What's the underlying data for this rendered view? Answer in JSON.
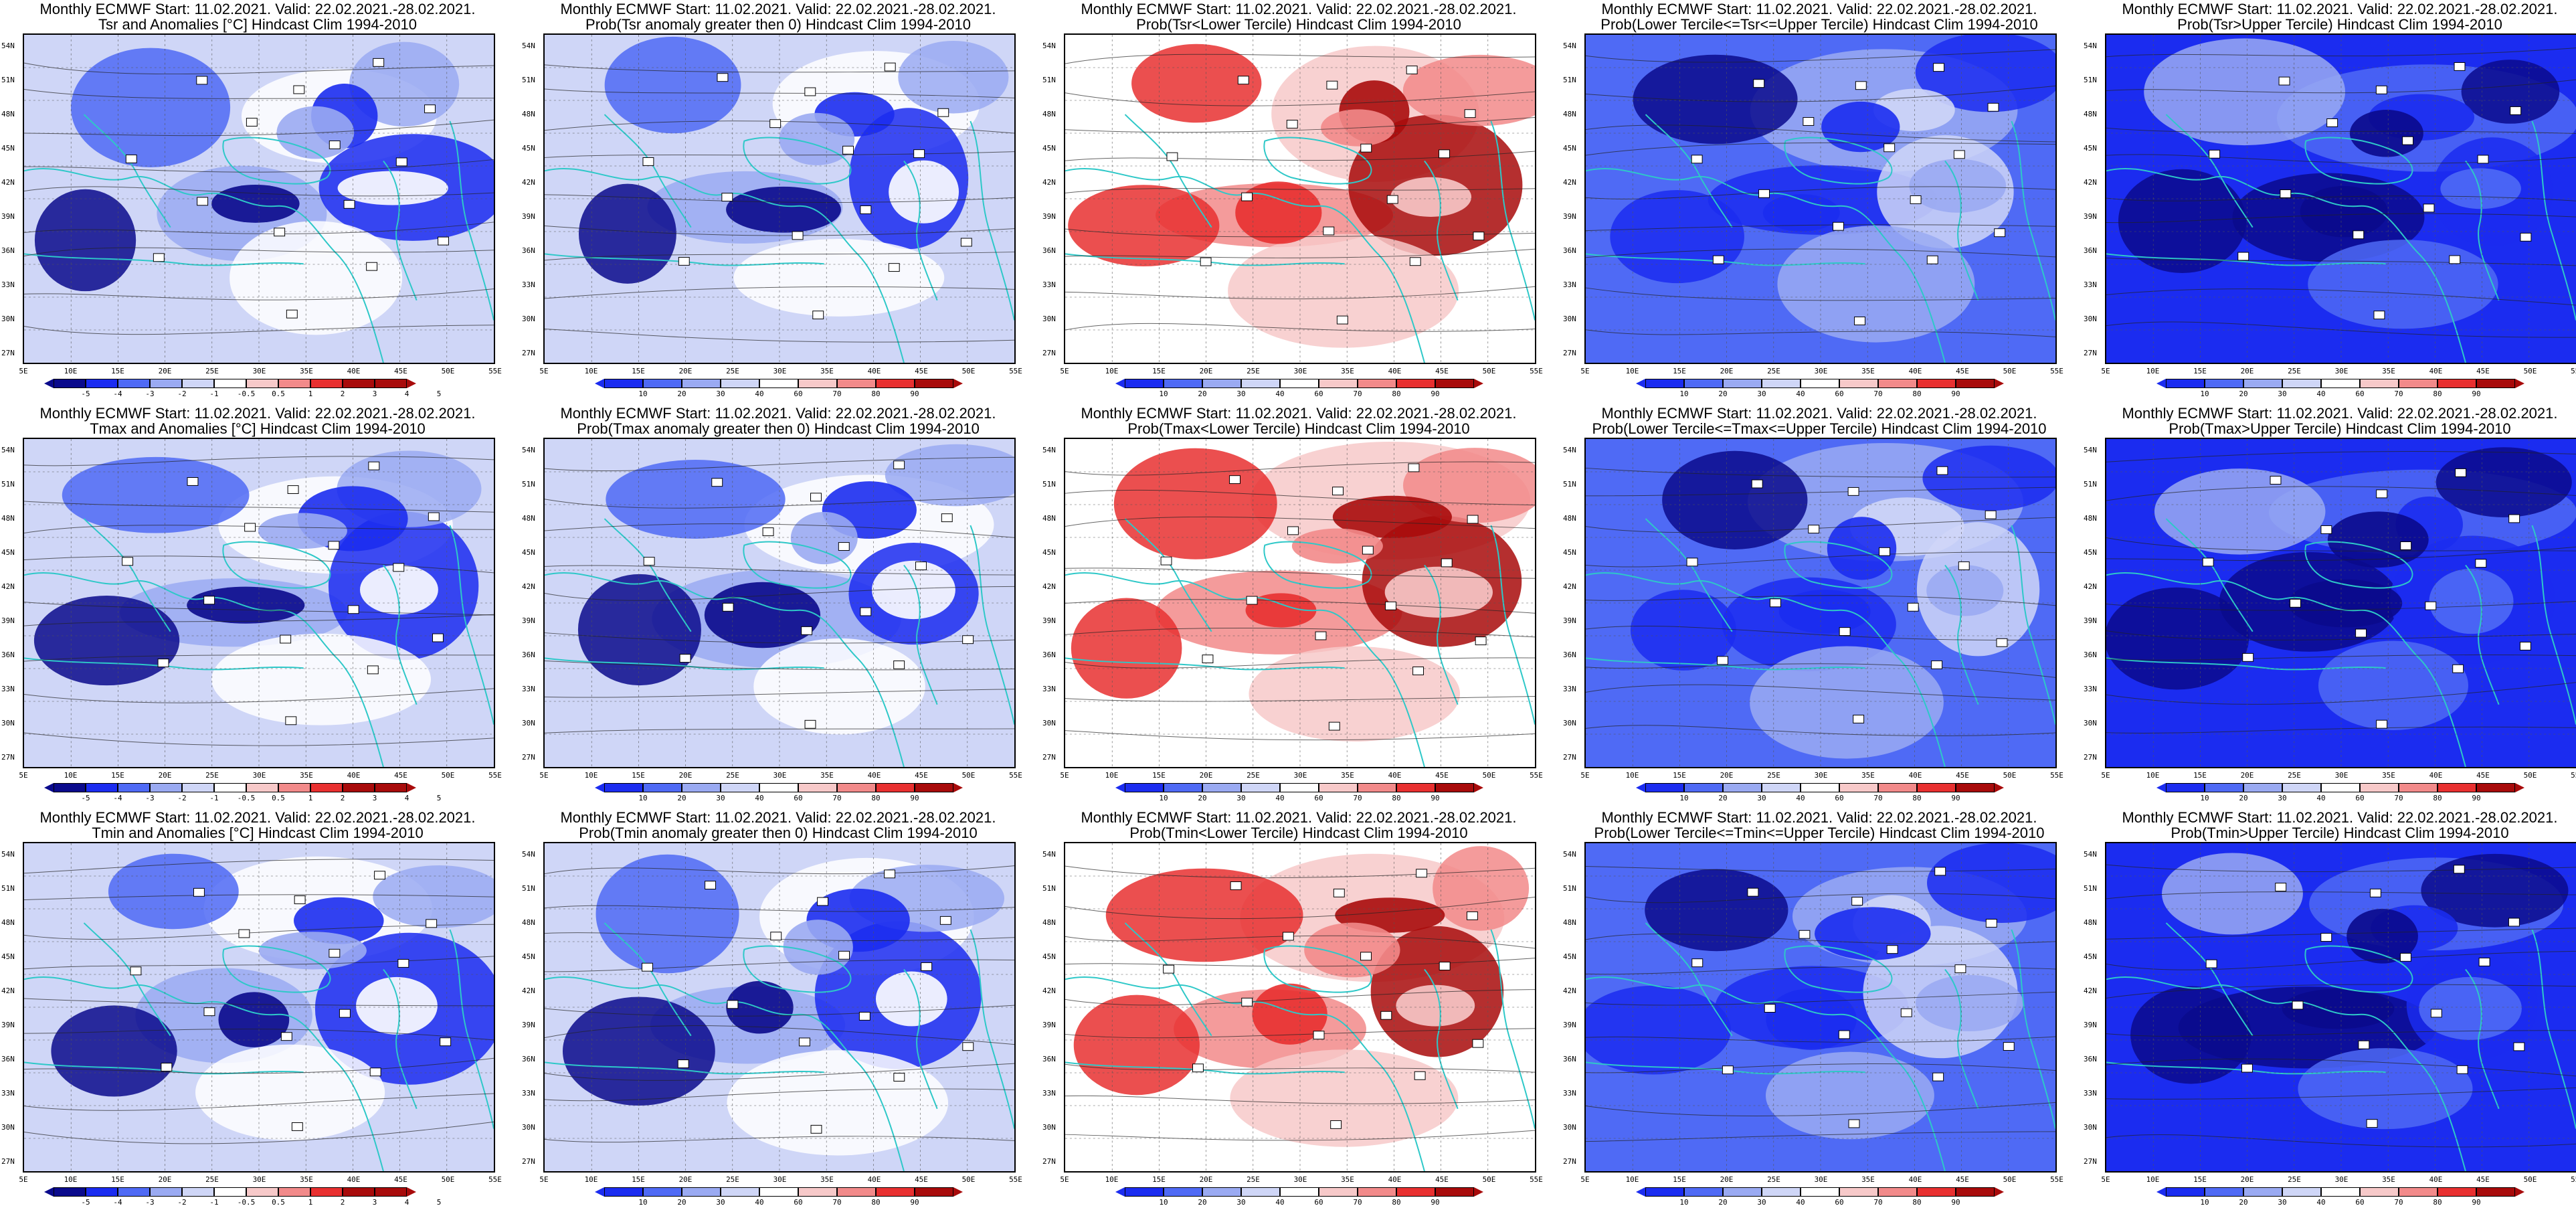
{
  "figure": {
    "lat_labels": [
      "54N",
      "51N",
      "48N",
      "45N",
      "42N",
      "39N",
      "36N",
      "33N",
      "30N",
      "27N"
    ],
    "lon_labels": [
      "5E",
      "10E",
      "15E",
      "20E",
      "25E",
      "30E",
      "35E",
      "40E",
      "45E",
      "50E",
      "55E"
    ],
    "anomaly_ticks": [
      "-5",
      "-4",
      "-3",
      "-2",
      "-1",
      "-0.5",
      "0.5",
      "1",
      "2",
      "3",
      "4",
      "5"
    ],
    "probability_ticks": [
      "10",
      "20",
      "30",
      "40",
      "60",
      "70",
      "80",
      "90"
    ],
    "colors": {
      "dark_blue": "#0a0a8c",
      "blue": "#1b2cf0",
      "mid_blue": "#4f6af5",
      "light_blue": "#9aaaf2",
      "pale_blue": "#cfd6f7",
      "white": "#ffffff",
      "pale_red": "#f7c9c9",
      "light_red": "#f28a8a",
      "red": "#e83030",
      "dark_red": "#a80b0b",
      "coast": "#2ec8c8",
      "contour": "#222222"
    }
  },
  "panels": [
    {
      "line1": "Monthly ECMWF Start: 11.02.2021. Valid: 22.02.2021.-28.02.2021.",
      "line2": "Tsr and Anomalies [°C] Hindcast Clim 1994-2010",
      "scale": "anomaly",
      "palette": "cold_anom"
    },
    {
      "line1": "Monthly ECMWF Start: 11.02.2021. Valid: 22.02.2021.-28.02.2021.",
      "line2": "Prob(Tsr anomaly greater then 0) Hindcast Clim 1994-2010",
      "scale": "probability",
      "palette": "cold"
    },
    {
      "line1": "Monthly ECMWF Start: 11.02.2021. Valid: 22.02.2021.-28.02.2021.",
      "line2": "Prob(Tsr<Lower Tercile) Hindcast Clim 1994-2010",
      "scale": "probability",
      "palette": "warm"
    },
    {
      "line1": "Monthly ECMWF Start: 11.02.2021. Valid: 22.02.2021.-28.02.2021.",
      "line2": "Prob(Lower Tercile<=Tsr<=Upper Tercile) Hindcast Clim 1994-2010",
      "scale": "probability",
      "palette": "mid"
    },
    {
      "line1": "Monthly ECMWF Start: 11.02.2021. Valid: 22.02.2021.-28.02.2021.",
      "line2": "Prob(Tsr>Upper Tercile) Hindcast Clim 1994-2010",
      "scale": "probability",
      "palette": "deep"
    },
    {
      "line1": "Monthly ECMWF Start: 11.02.2021. Valid: 22.02.2021.-28.02.2021.",
      "line2": "Tmax and Anomalies [°C] Hindcast Clim 1994-2010",
      "scale": "anomaly",
      "palette": "cold_anom"
    },
    {
      "line1": "Monthly ECMWF Start: 11.02.2021. Valid: 22.02.2021.-28.02.2021.",
      "line2": "Prob(Tmax anomaly greater then 0) Hindcast Clim 1994-2010",
      "scale": "probability",
      "palette": "cold"
    },
    {
      "line1": "Monthly ECMWF Start: 11.02.2021. Valid: 22.02.2021.-28.02.2021.",
      "line2": "Prob(Tmax<Lower Tercile) Hindcast Clim 1994-2010",
      "scale": "probability",
      "palette": "warm"
    },
    {
      "line1": "Monthly ECMWF Start: 11.02.2021. Valid: 22.02.2021.-28.02.2021.",
      "line2": "Prob(Lower Tercile<=Tmax<=Upper Tercile) Hindcast Clim 1994-2010",
      "scale": "probability",
      "palette": "mid"
    },
    {
      "line1": "Monthly ECMWF Start: 11.02.2021. Valid: 22.02.2021.-28.02.2021.",
      "line2": "Prob(Tmax>Upper Tercile) Hindcast Clim 1994-2010",
      "scale": "probability",
      "palette": "deep"
    },
    {
      "line1": "Monthly ECMWF Start: 11.02.2021. Valid: 22.02.2021.-28.02.2021.",
      "line2": "Tmin and Anomalies [°C] Hindcast Clim 1994-2010",
      "scale": "anomaly",
      "palette": "cold_anom"
    },
    {
      "line1": "Monthly ECMWF Start: 11.02.2021. Valid: 22.02.2021.-28.02.2021.",
      "line2": "Prob(Tmin anomaly greater then 0) Hindcast Clim 1994-2010",
      "scale": "probability",
      "palette": "cold"
    },
    {
      "line1": "Monthly ECMWF Start: 11.02.2021. Valid: 22.02.2021.-28.02.2021.",
      "line2": "Prob(Tmin<Lower Tercile) Hindcast Clim 1994-2010",
      "scale": "probability",
      "palette": "warm"
    },
    {
      "line1": "Monthly ECMWF Start: 11.02.2021. Valid: 22.02.2021.-28.02.2021.",
      "line2": "Prob(Lower Tercile<=Tmin<=Upper Tercile) Hindcast Clim 1994-2010",
      "scale": "probability",
      "palette": "mid"
    },
    {
      "line1": "Monthly ECMWF Start: 11.02.2021. Valid: 22.02.2021.-28.02.2021.",
      "line2": "Prob(Tmin>Upper Tercile) Hindcast Clim 1994-2010",
      "scale": "probability",
      "palette": "deep"
    }
  ]
}
